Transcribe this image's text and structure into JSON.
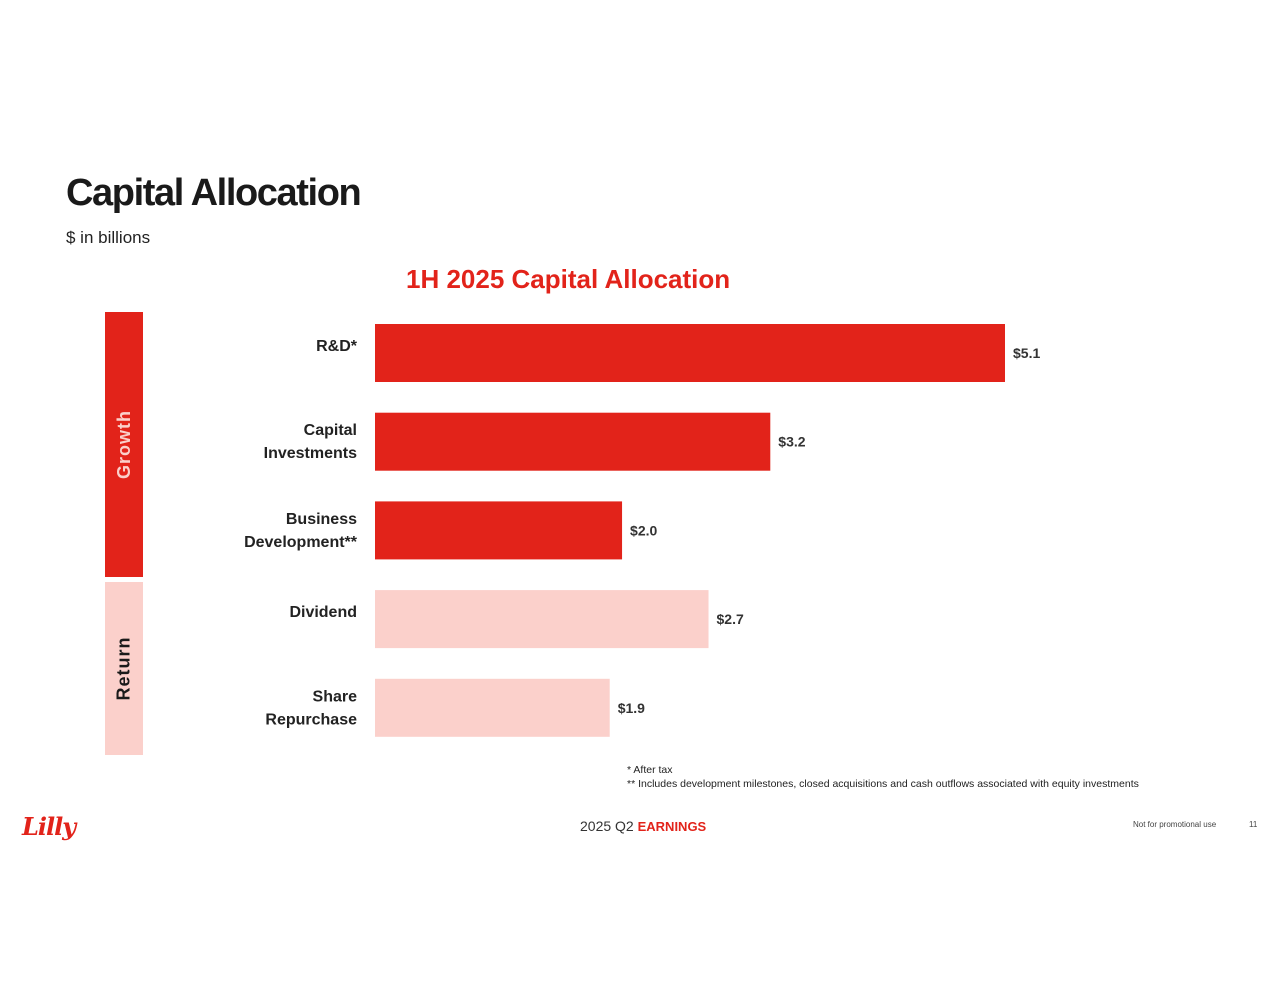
{
  "header": {
    "title": "Capital Allocation",
    "subtitle": "$ in billions"
  },
  "groups": {
    "growth": "Growth",
    "return": "Return"
  },
  "chart_data": {
    "type": "bar",
    "orientation": "horizontal",
    "title": "1H 2025 Capital Allocation",
    "categories": [
      [
        "R&D*"
      ],
      [
        "Capital",
        "Investments"
      ],
      [
        "Business",
        "Development**"
      ],
      [
        "Dividend"
      ],
      [
        "Share",
        "Repurchase"
      ]
    ],
    "values": [
      5.1,
      3.2,
      2.0,
      2.7,
      1.9
    ],
    "value_labels": [
      "$5.1",
      "$3.2",
      "$2.0",
      "$2.7",
      "$1.9"
    ],
    "bar_groups": [
      "growth",
      "growth",
      "growth",
      "return",
      "return"
    ],
    "colors": {
      "growth": "#e2231a",
      "return": "#fbd0cb"
    },
    "xlim": [
      0,
      5.1
    ],
    "grid": false,
    "legend": "none"
  },
  "footnotes": {
    "note1": "* After tax",
    "note2": "** Includes development milestones, closed acquisitions and cash outflows associated with equity investments"
  },
  "footer": {
    "logo": "Lilly",
    "center_plain": "2025 Q2",
    "center_accent": "EARNINGS",
    "promo": "Not for promotional use",
    "page_number": "11"
  }
}
